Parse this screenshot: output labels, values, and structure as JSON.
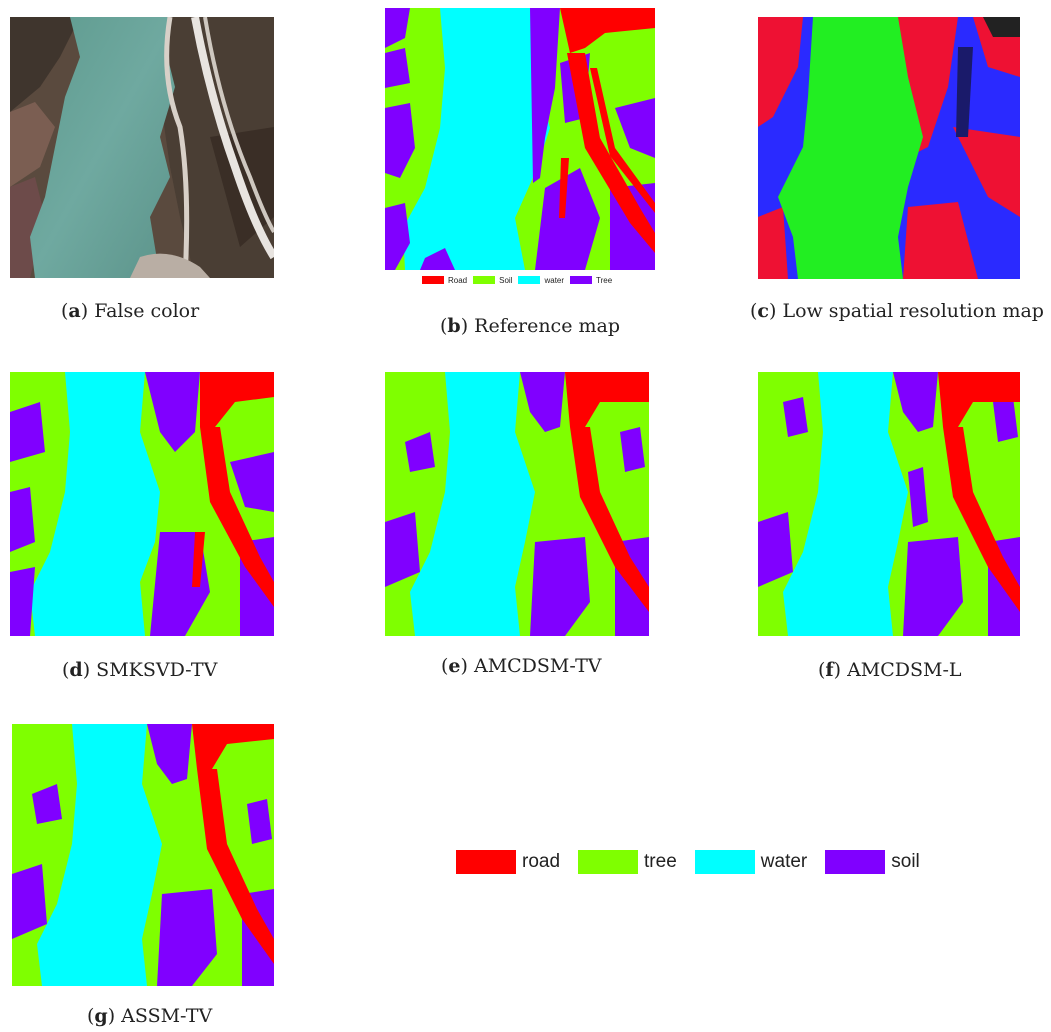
{
  "panels": [
    {
      "id": "a",
      "letter": "a",
      "title": "False color"
    },
    {
      "id": "b",
      "letter": "b",
      "title": "Reference map"
    },
    {
      "id": "c",
      "letter": "c",
      "title": "Low spatial resolution map"
    },
    {
      "id": "d",
      "letter": "d",
      "title": "SMKSVD-TV"
    },
    {
      "id": "e",
      "letter": "e",
      "title": "AMCDSM-TV"
    },
    {
      "id": "f",
      "letter": "f",
      "title": "AMCDSM-L"
    },
    {
      "id": "g",
      "letter": "g",
      "title": "ASSM-TV"
    }
  ],
  "reference_legend": [
    {
      "label": "Road",
      "color": "#ff0000"
    },
    {
      "label": "Soil",
      "color": "#7fff00"
    },
    {
      "label": "water",
      "color": "#00ffff"
    },
    {
      "label": "Tree",
      "color": "#8000ff"
    }
  ],
  "main_legend": [
    {
      "label": "road",
      "color": "#ff0000"
    },
    {
      "label": "tree",
      "color": "#7fff00"
    },
    {
      "label": "water",
      "color": "#00ffff"
    },
    {
      "label": "soil",
      "color": "#8000ff"
    }
  ],
  "colors": {
    "road": "#ff0000",
    "green": "#7fff00",
    "water": "#00ffff",
    "purple": "#8000ff",
    "lowres_green": "#22ee22",
    "lowres_blue": "#2a2aff",
    "lowres_red": "#ee1133"
  }
}
